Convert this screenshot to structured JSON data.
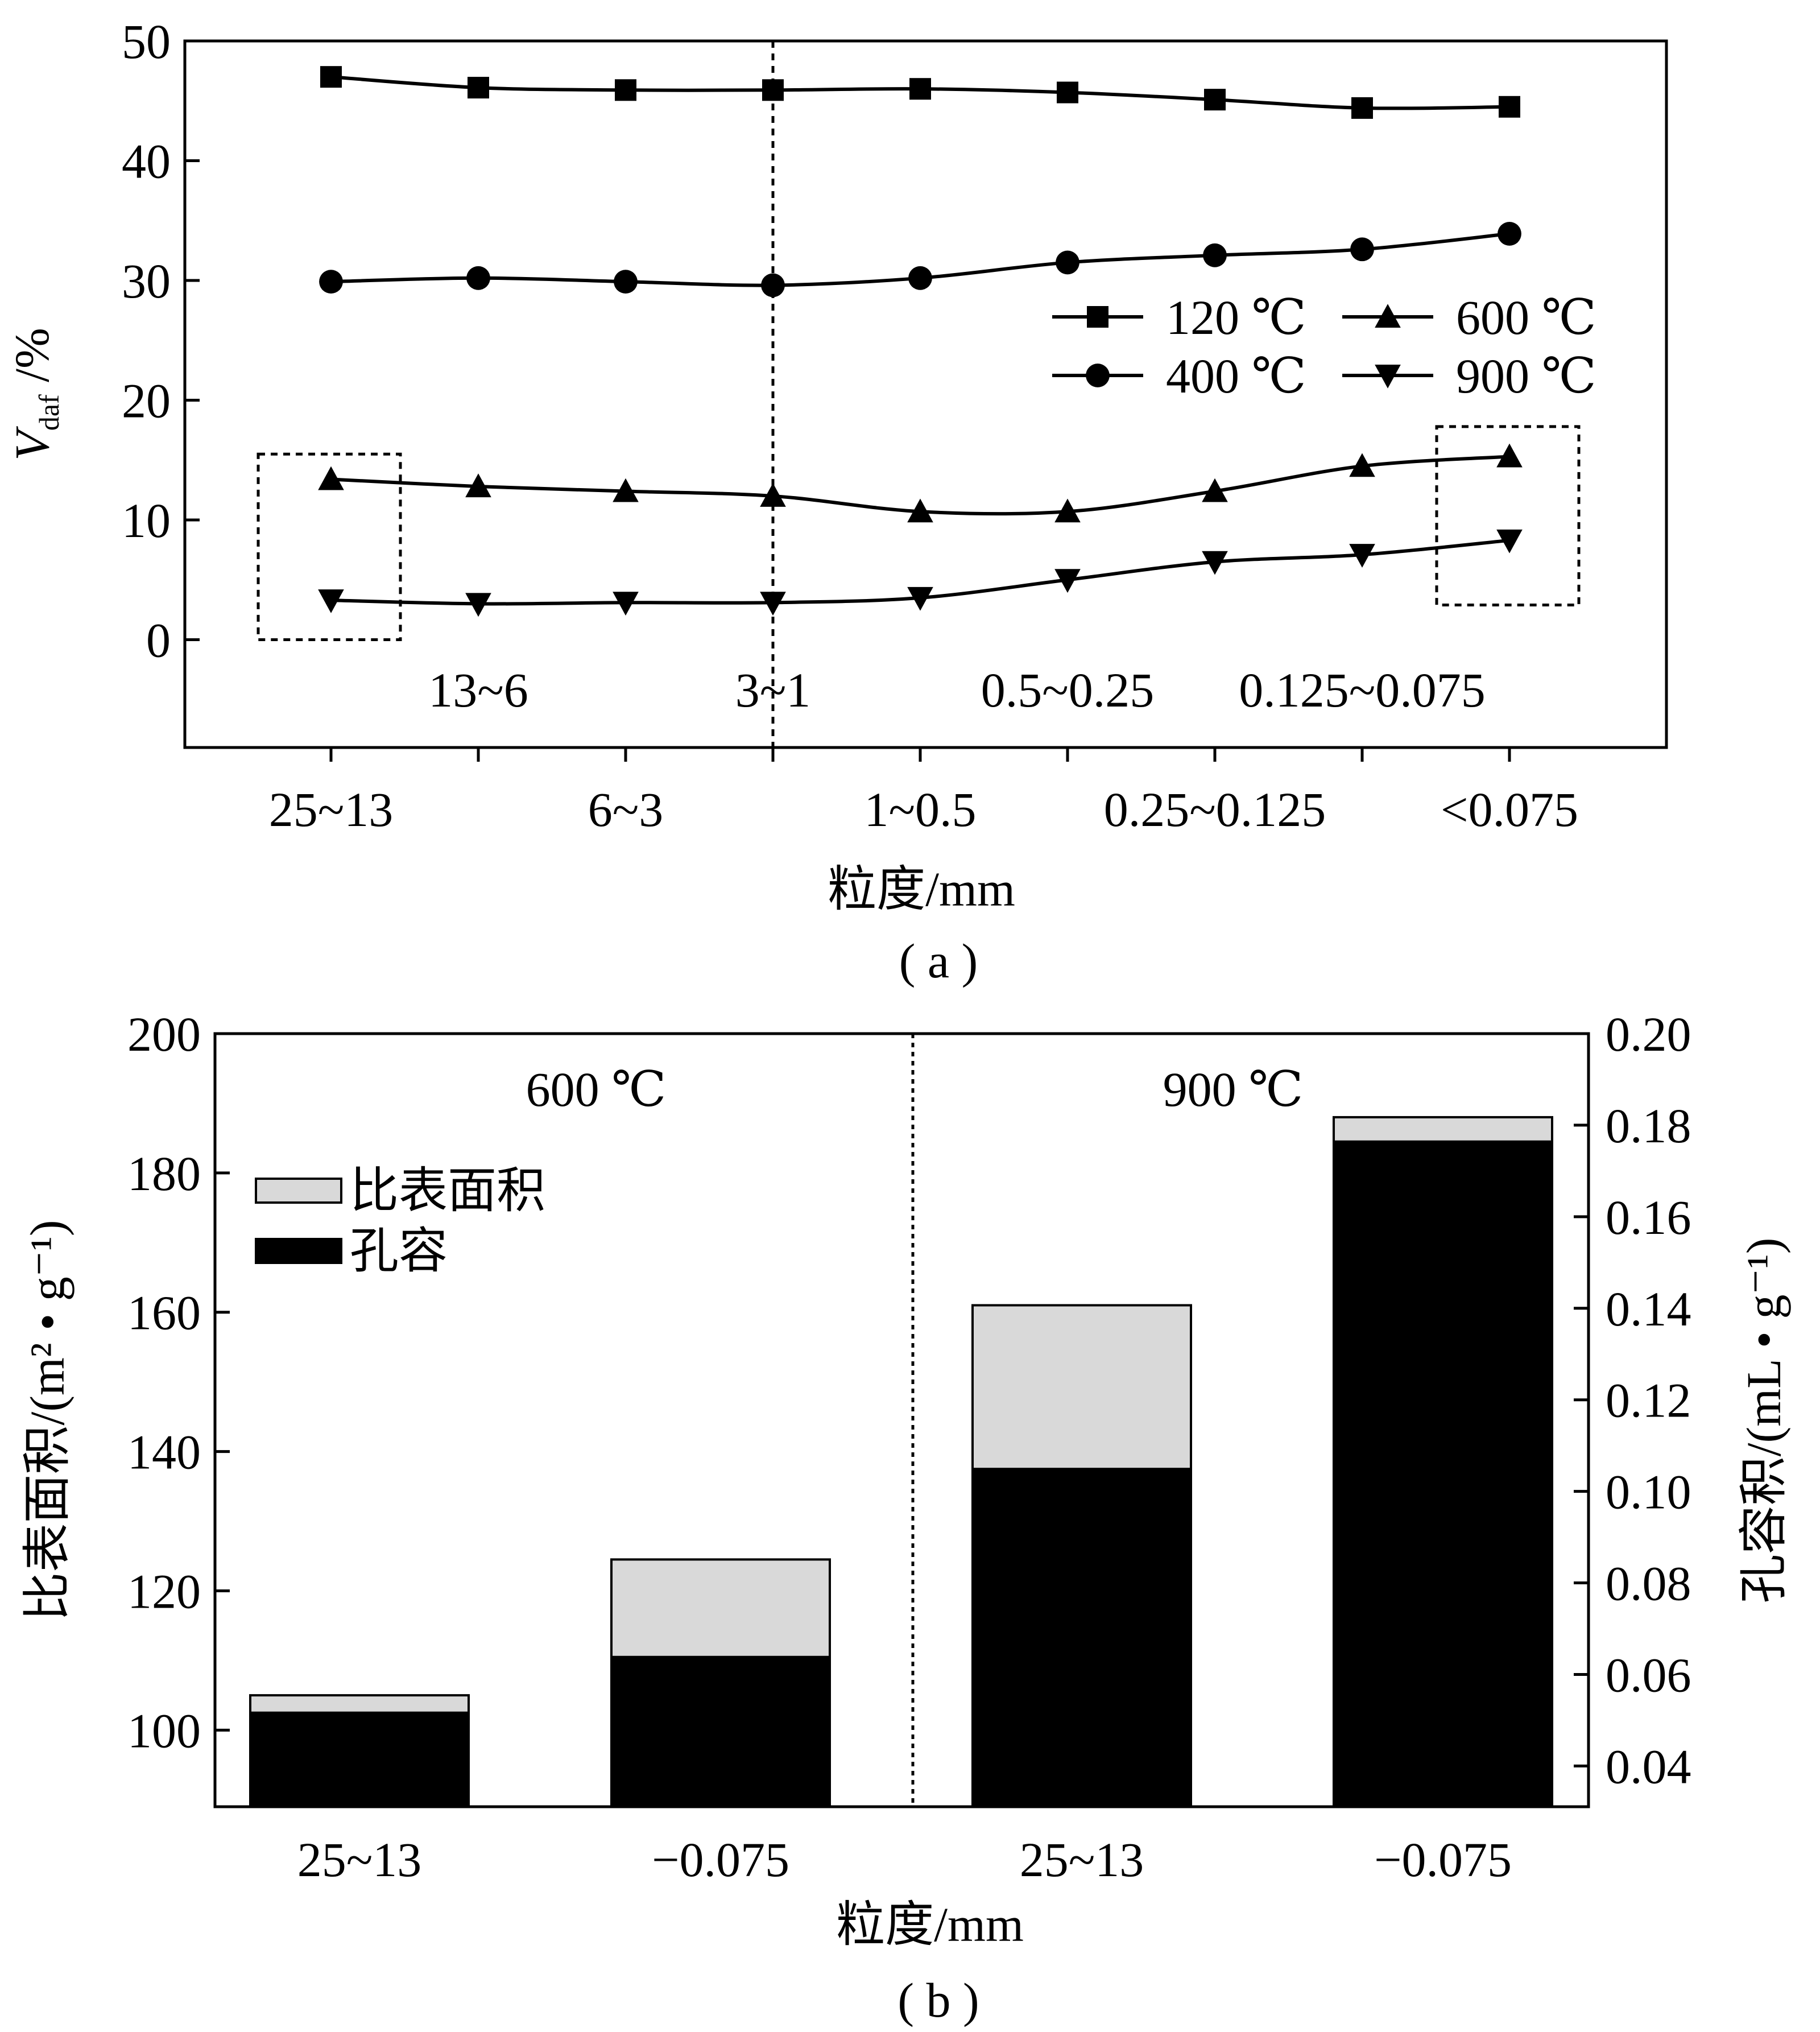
{
  "chart_data": [
    {
      "type": "line",
      "caption": "( a )",
      "ylabel_main": "V",
      "ylabel_sub": "daf",
      "ylabel_unit": " /%",
      "xlabel": "粒度/mm",
      "ylim": [
        -9,
        50
      ],
      "yticks": [
        0,
        10,
        20,
        30,
        40,
        50
      ],
      "categories": [
        "25~13",
        "13~6",
        "6~3",
        "3~1",
        "1~0.5",
        "0.5~0.25",
        "0.25~0.125",
        "0.125~0.075",
        "<0.075"
      ],
      "bottom_labels": [
        "25~13",
        "6~3",
        "1~0.5",
        "0.25~0.125",
        "<0.075"
      ],
      "upper_labels": [
        "13~6",
        "3~1",
        "0.5~0.25",
        "0.125~0.075"
      ],
      "legend_position": "right",
      "series": [
        {
          "name": "120 ℃",
          "marker": "square",
          "values": [
            47.0,
            46.1,
            45.9,
            45.9,
            46.0,
            45.7,
            45.1,
            44.4,
            44.5
          ]
        },
        {
          "name": "400 ℃",
          "marker": "circle",
          "values": [
            29.9,
            30.2,
            29.9,
            29.6,
            30.2,
            31.5,
            32.1,
            32.6,
            33.9
          ]
        },
        {
          "name": "600 ℃",
          "marker": "triangle-up",
          "values": [
            13.4,
            12.8,
            12.4,
            12.0,
            10.7,
            10.7,
            12.4,
            14.5,
            15.3
          ]
        },
        {
          "name": "900 ℃",
          "marker": "triangle-down",
          "values": [
            3.3,
            3.0,
            3.1,
            3.1,
            3.5,
            5.0,
            6.5,
            7.1,
            8.3
          ]
        }
      ],
      "vertical_dashed_at": "3~1",
      "dashed_boxes": [
        {
          "around": "25~13",
          "y_range": [
            0,
            15.5
          ]
        },
        {
          "around": "<0.075",
          "y_range": [
            2.9,
            17.8
          ]
        }
      ]
    },
    {
      "type": "bar",
      "caption": "( b )",
      "ylabel": "比表面积/(m² • g⁻¹)",
      "y2label": "孔容积/(mL • g⁻¹)",
      "xlabel": "粒度/mm",
      "ylim": [
        89,
        200
      ],
      "yticks": [
        100,
        120,
        140,
        160,
        180,
        200
      ],
      "y2lim": [
        0.0311,
        0.2
      ],
      "y2ticks": [
        "0.04",
        "0.06",
        "0.08",
        "0.10",
        "0.12",
        "0.14",
        "0.16",
        "0.18",
        "0.20"
      ],
      "groups": [
        "600 ℃",
        "900 ℃"
      ],
      "categories": [
        "25~13",
        "−0.075",
        "25~13",
        "−0.075"
      ],
      "legend_position": "top-left",
      "series": [
        {
          "name": "比表面积",
          "color": "#d9d9d9",
          "values": [
            105,
            124.5,
            161,
            188
          ]
        },
        {
          "name": "孔容",
          "color": "#000000",
          "values": [
            102.5,
            110.5,
            137.5,
            184.5
          ]
        }
      ]
    }
  ]
}
